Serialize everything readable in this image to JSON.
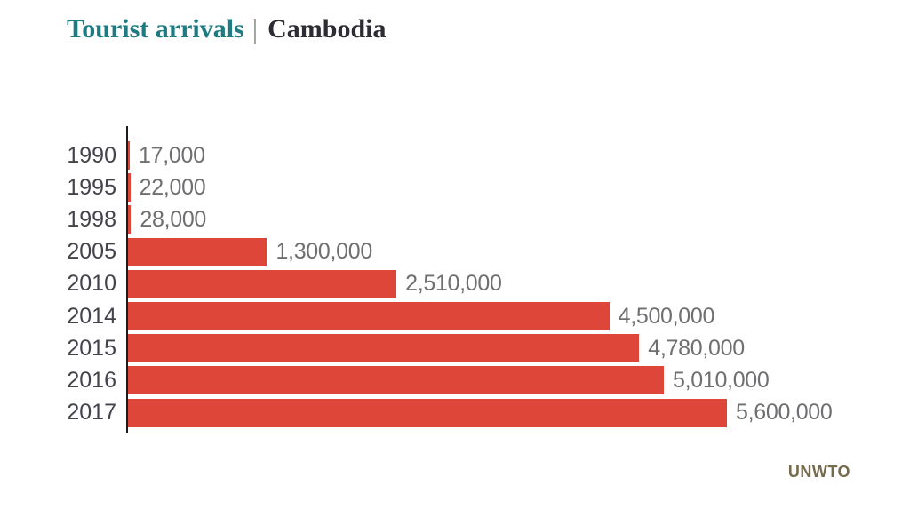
{
  "header": {
    "title_left": "Tourist arrivals",
    "separator": "|",
    "title_right": "Cambodia"
  },
  "source": "UNWTO",
  "colors": {
    "background": "#ffffff",
    "bar": "#de4639",
    "title_accent": "#1e7b82",
    "title_dark": "#2d2c32",
    "separator": "#8e8e8e",
    "year_label": "#44434b",
    "value_label": "#6f6f72",
    "axis": "#1b1b1b",
    "source": "#756a4c"
  },
  "chart_data": {
    "type": "bar",
    "orientation": "horizontal",
    "title": "Tourist arrivals | Cambodia",
    "xlabel": "",
    "ylabel": "",
    "categories": [
      "1990",
      "1995",
      "1998",
      "2005",
      "2010",
      "2014",
      "2015",
      "2016",
      "2017"
    ],
    "values": [
      17000,
      22000,
      28000,
      1300000,
      2510000,
      4500000,
      4780000,
      5010000,
      5600000
    ],
    "value_labels": [
      "17,000",
      "22,000",
      "28,000",
      "1,300,000",
      "2,510,000",
      "4,500,000",
      "4,780,000",
      "5,010,000",
      "5,600,000"
    ],
    "xlim": [
      0,
      5600000
    ],
    "grid": false,
    "legend": false,
    "source": "UNWTO"
  }
}
